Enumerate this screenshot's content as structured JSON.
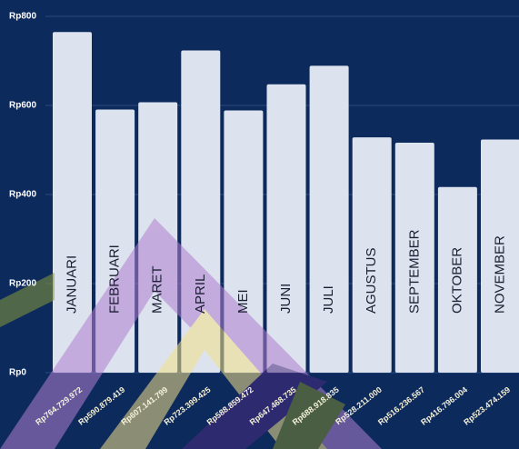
{
  "chart_data": {
    "type": "bar",
    "categories": [
      "JANUARI",
      "FEBRUARI",
      "MARET",
      "APRIL",
      "MEI",
      "JUNI",
      "JULI",
      "AGUSTUS",
      "SEPTEMBER",
      "OKTOBER",
      "NOVEMBER"
    ],
    "values": [
      764.729972,
      590.879419,
      607.141799,
      723.399425,
      588.859472,
      647.468735,
      688.918835,
      528.211,
      516.236567,
      416.796004,
      523.474159
    ],
    "value_labels": [
      "Rp764.729.972",
      "Rp590.879.419",
      "Rp607.141.799",
      "Rp723.399.425",
      "Rp588.859.472",
      "Rp647.468.735",
      "Rp688.918.835",
      "Rp528.211.000",
      "Rp516.236.567",
      "Rp416.796.004",
      "Rp523.474.159"
    ],
    "color": "#dde3ee",
    "ylim": [
      0,
      800
    ],
    "yticks": [
      {
        "value": 0,
        "label": "Rp0"
      },
      {
        "value": 200,
        "label": "Rp200"
      },
      {
        "value": 400,
        "label": "Rp400"
      },
      {
        "value": 600,
        "label": "Rp600"
      },
      {
        "value": 800,
        "label": "Rp800"
      }
    ],
    "grid": true
  }
}
